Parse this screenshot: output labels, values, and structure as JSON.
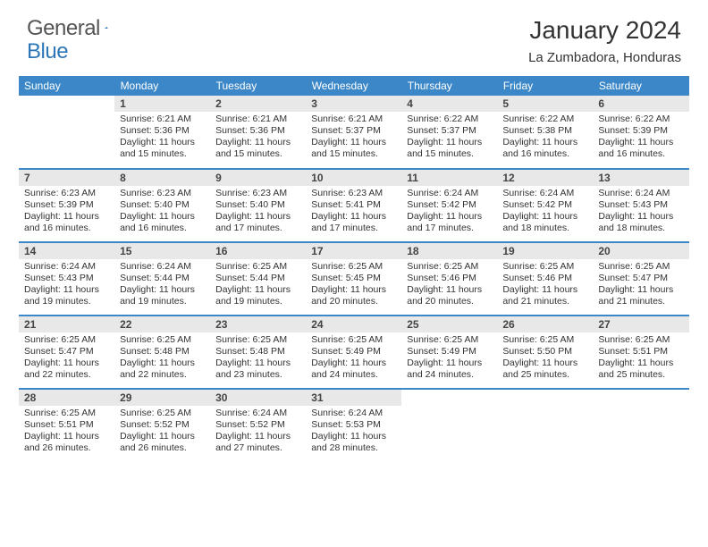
{
  "logo": {
    "general": "General",
    "blue": "Blue"
  },
  "title": "January 2024",
  "location": "La Zumbadora, Honduras",
  "header_bg": "#3b87c8",
  "daynum_bg": "#e8e8e8",
  "row_divider": "#3b87c8",
  "days": [
    "Sunday",
    "Monday",
    "Tuesday",
    "Wednesday",
    "Thursday",
    "Friday",
    "Saturday"
  ],
  "weeks": [
    [
      null,
      {
        "n": "1",
        "sr": "Sunrise: 6:21 AM",
        "ss": "Sunset: 5:36 PM",
        "d1": "Daylight: 11 hours",
        "d2": "and 15 minutes."
      },
      {
        "n": "2",
        "sr": "Sunrise: 6:21 AM",
        "ss": "Sunset: 5:36 PM",
        "d1": "Daylight: 11 hours",
        "d2": "and 15 minutes."
      },
      {
        "n": "3",
        "sr": "Sunrise: 6:21 AM",
        "ss": "Sunset: 5:37 PM",
        "d1": "Daylight: 11 hours",
        "d2": "and 15 minutes."
      },
      {
        "n": "4",
        "sr": "Sunrise: 6:22 AM",
        "ss": "Sunset: 5:37 PM",
        "d1": "Daylight: 11 hours",
        "d2": "and 15 minutes."
      },
      {
        "n": "5",
        "sr": "Sunrise: 6:22 AM",
        "ss": "Sunset: 5:38 PM",
        "d1": "Daylight: 11 hours",
        "d2": "and 16 minutes."
      },
      {
        "n": "6",
        "sr": "Sunrise: 6:22 AM",
        "ss": "Sunset: 5:39 PM",
        "d1": "Daylight: 11 hours",
        "d2": "and 16 minutes."
      }
    ],
    [
      {
        "n": "7",
        "sr": "Sunrise: 6:23 AM",
        "ss": "Sunset: 5:39 PM",
        "d1": "Daylight: 11 hours",
        "d2": "and 16 minutes."
      },
      {
        "n": "8",
        "sr": "Sunrise: 6:23 AM",
        "ss": "Sunset: 5:40 PM",
        "d1": "Daylight: 11 hours",
        "d2": "and 16 minutes."
      },
      {
        "n": "9",
        "sr": "Sunrise: 6:23 AM",
        "ss": "Sunset: 5:40 PM",
        "d1": "Daylight: 11 hours",
        "d2": "and 17 minutes."
      },
      {
        "n": "10",
        "sr": "Sunrise: 6:23 AM",
        "ss": "Sunset: 5:41 PM",
        "d1": "Daylight: 11 hours",
        "d2": "and 17 minutes."
      },
      {
        "n": "11",
        "sr": "Sunrise: 6:24 AM",
        "ss": "Sunset: 5:42 PM",
        "d1": "Daylight: 11 hours",
        "d2": "and 17 minutes."
      },
      {
        "n": "12",
        "sr": "Sunrise: 6:24 AM",
        "ss": "Sunset: 5:42 PM",
        "d1": "Daylight: 11 hours",
        "d2": "and 18 minutes."
      },
      {
        "n": "13",
        "sr": "Sunrise: 6:24 AM",
        "ss": "Sunset: 5:43 PM",
        "d1": "Daylight: 11 hours",
        "d2": "and 18 minutes."
      }
    ],
    [
      {
        "n": "14",
        "sr": "Sunrise: 6:24 AM",
        "ss": "Sunset: 5:43 PM",
        "d1": "Daylight: 11 hours",
        "d2": "and 19 minutes."
      },
      {
        "n": "15",
        "sr": "Sunrise: 6:24 AM",
        "ss": "Sunset: 5:44 PM",
        "d1": "Daylight: 11 hours",
        "d2": "and 19 minutes."
      },
      {
        "n": "16",
        "sr": "Sunrise: 6:25 AM",
        "ss": "Sunset: 5:44 PM",
        "d1": "Daylight: 11 hours",
        "d2": "and 19 minutes."
      },
      {
        "n": "17",
        "sr": "Sunrise: 6:25 AM",
        "ss": "Sunset: 5:45 PM",
        "d1": "Daylight: 11 hours",
        "d2": "and 20 minutes."
      },
      {
        "n": "18",
        "sr": "Sunrise: 6:25 AM",
        "ss": "Sunset: 5:46 PM",
        "d1": "Daylight: 11 hours",
        "d2": "and 20 minutes."
      },
      {
        "n": "19",
        "sr": "Sunrise: 6:25 AM",
        "ss": "Sunset: 5:46 PM",
        "d1": "Daylight: 11 hours",
        "d2": "and 21 minutes."
      },
      {
        "n": "20",
        "sr": "Sunrise: 6:25 AM",
        "ss": "Sunset: 5:47 PM",
        "d1": "Daylight: 11 hours",
        "d2": "and 21 minutes."
      }
    ],
    [
      {
        "n": "21",
        "sr": "Sunrise: 6:25 AM",
        "ss": "Sunset: 5:47 PM",
        "d1": "Daylight: 11 hours",
        "d2": "and 22 minutes."
      },
      {
        "n": "22",
        "sr": "Sunrise: 6:25 AM",
        "ss": "Sunset: 5:48 PM",
        "d1": "Daylight: 11 hours",
        "d2": "and 22 minutes."
      },
      {
        "n": "23",
        "sr": "Sunrise: 6:25 AM",
        "ss": "Sunset: 5:48 PM",
        "d1": "Daylight: 11 hours",
        "d2": "and 23 minutes."
      },
      {
        "n": "24",
        "sr": "Sunrise: 6:25 AM",
        "ss": "Sunset: 5:49 PM",
        "d1": "Daylight: 11 hours",
        "d2": "and 24 minutes."
      },
      {
        "n": "25",
        "sr": "Sunrise: 6:25 AM",
        "ss": "Sunset: 5:49 PM",
        "d1": "Daylight: 11 hours",
        "d2": "and 24 minutes."
      },
      {
        "n": "26",
        "sr": "Sunrise: 6:25 AM",
        "ss": "Sunset: 5:50 PM",
        "d1": "Daylight: 11 hours",
        "d2": "and 25 minutes."
      },
      {
        "n": "27",
        "sr": "Sunrise: 6:25 AM",
        "ss": "Sunset: 5:51 PM",
        "d1": "Daylight: 11 hours",
        "d2": "and 25 minutes."
      }
    ],
    [
      {
        "n": "28",
        "sr": "Sunrise: 6:25 AM",
        "ss": "Sunset: 5:51 PM",
        "d1": "Daylight: 11 hours",
        "d2": "and 26 minutes."
      },
      {
        "n": "29",
        "sr": "Sunrise: 6:25 AM",
        "ss": "Sunset: 5:52 PM",
        "d1": "Daylight: 11 hours",
        "d2": "and 26 minutes."
      },
      {
        "n": "30",
        "sr": "Sunrise: 6:24 AM",
        "ss": "Sunset: 5:52 PM",
        "d1": "Daylight: 11 hours",
        "d2": "and 27 minutes."
      },
      {
        "n": "31",
        "sr": "Sunrise: 6:24 AM",
        "ss": "Sunset: 5:53 PM",
        "d1": "Daylight: 11 hours",
        "d2": "and 28 minutes."
      },
      null,
      null,
      null
    ]
  ]
}
